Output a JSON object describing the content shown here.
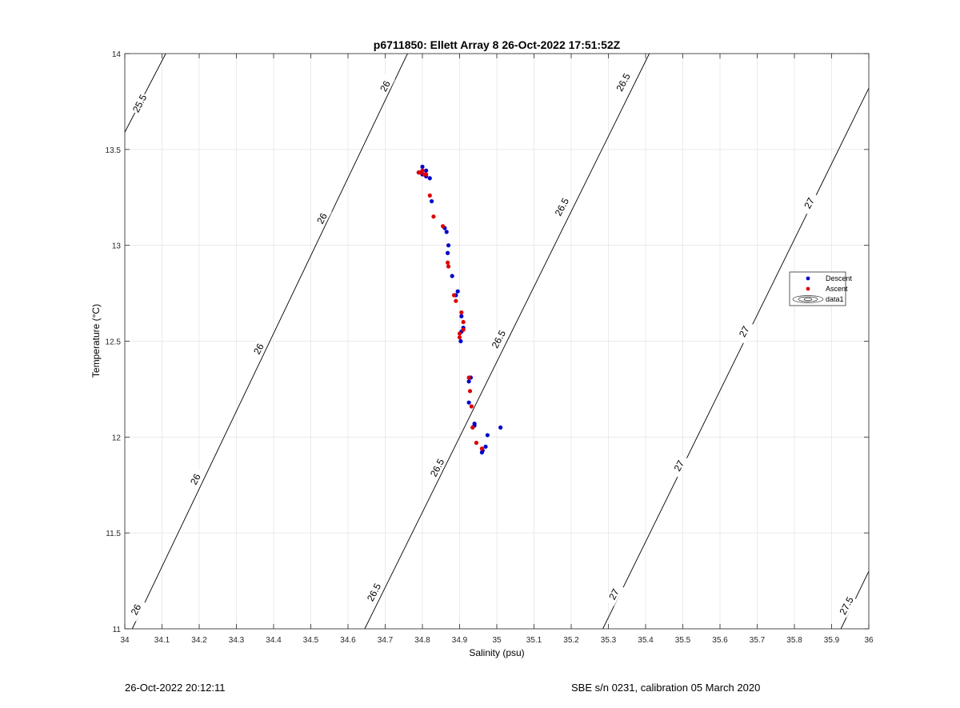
{
  "chart_data": {
    "type": "scatter",
    "title": "p6711850: Ellett Array 8 26-Oct-2022 17:51:52Z",
    "xlabel": "Salinity (psu)",
    "ylabel": "Temperature (°C)",
    "xlim": [
      34,
      36
    ],
    "ylim": [
      11,
      14
    ],
    "xticks": [
      34,
      34.1,
      34.2,
      34.3,
      34.4,
      34.5,
      34.6,
      34.7,
      34.8,
      34.9,
      35,
      35.1,
      35.2,
      35.3,
      35.4,
      35.5,
      35.6,
      35.7,
      35.8,
      35.9,
      36
    ],
    "xtick_labels": [
      "34",
      "34.1",
      "34.2",
      "34.3",
      "34.4",
      "34.5",
      "34.6",
      "34.7",
      "34.8",
      "34.9",
      "35",
      "35.1",
      "35.2",
      "35.3",
      "35.4",
      "35.5",
      "35.6",
      "35.7",
      "35.8",
      "35.9",
      "36"
    ],
    "yticks": [
      11,
      11.5,
      12,
      12.5,
      13,
      13.5,
      14
    ],
    "ytick_labels": [
      "11",
      "11.5",
      "12",
      "12.5",
      "13",
      "13.5",
      "14"
    ],
    "grid": true,
    "legend_position": "right",
    "series": [
      {
        "name": "Descent",
        "color": "#0000cc",
        "marker": "dot",
        "points": [
          [
            34.8,
            13.41
          ],
          [
            34.81,
            13.39
          ],
          [
            34.79,
            13.38
          ],
          [
            34.8,
            13.37
          ],
          [
            34.81,
            13.36
          ],
          [
            34.82,
            13.35
          ],
          [
            34.825,
            13.23
          ],
          [
            34.86,
            13.09
          ],
          [
            34.865,
            13.07
          ],
          [
            34.87,
            13.0
          ],
          [
            34.868,
            12.96
          ],
          [
            34.88,
            12.84
          ],
          [
            34.895,
            12.76
          ],
          [
            34.89,
            12.74
          ],
          [
            34.905,
            12.63
          ],
          [
            34.91,
            12.57
          ],
          [
            34.905,
            12.55
          ],
          [
            34.903,
            12.5
          ],
          [
            34.93,
            12.31
          ],
          [
            34.925,
            12.29
          ],
          [
            34.925,
            12.18
          ],
          [
            34.94,
            12.07
          ],
          [
            34.94,
            12.06
          ],
          [
            35.01,
            12.05
          ],
          [
            34.975,
            12.01
          ],
          [
            34.97,
            11.95
          ],
          [
            34.962,
            11.93
          ],
          [
            34.96,
            11.92
          ]
        ]
      },
      {
        "name": "Ascent",
        "color": "#dd0000",
        "marker": "dot",
        "points": [
          [
            34.79,
            13.38
          ],
          [
            34.8,
            13.39
          ],
          [
            34.81,
            13.37
          ],
          [
            34.795,
            13.38
          ],
          [
            34.805,
            13.37
          ],
          [
            34.82,
            13.26
          ],
          [
            34.83,
            13.15
          ],
          [
            34.855,
            13.1
          ],
          [
            34.868,
            12.91
          ],
          [
            34.87,
            12.89
          ],
          [
            34.885,
            12.74
          ],
          [
            34.89,
            12.71
          ],
          [
            34.905,
            12.65
          ],
          [
            34.91,
            12.6
          ],
          [
            34.91,
            12.56
          ],
          [
            34.9,
            12.54
          ],
          [
            34.9,
            12.52
          ],
          [
            34.925,
            12.31
          ],
          [
            34.928,
            12.24
          ],
          [
            34.932,
            12.16
          ],
          [
            34.935,
            12.05
          ],
          [
            34.945,
            11.97
          ],
          [
            34.96,
            11.94
          ]
        ]
      }
    ],
    "legend": [
      "Descent",
      "Ascent",
      "data1"
    ],
    "contours": {
      "name": "data1",
      "lines": [
        {
          "level": "25.5",
          "p1": [
            34.0,
            13.59
          ],
          "p2": [
            34.11,
            14.0
          ]
        },
        {
          "level": "26",
          "p1": [
            34.02,
            11.0
          ],
          "p2": [
            34.76,
            14.0
          ]
        },
        {
          "level": "26.5",
          "p1": [
            34.645,
            11.0
          ],
          "p2": [
            35.41,
            14.0
          ]
        },
        {
          "level": "27",
          "p1": [
            35.285,
            11.0
          ],
          "p2": [
            36.0,
            13.82
          ]
        },
        {
          "level": "27.5",
          "p1": [
            35.925,
            11.0
          ],
          "p2": [
            36.0,
            11.3
          ]
        }
      ],
      "labels": [
        {
          "text": "25.5",
          "at": [
            34.04,
            13.74
          ]
        },
        {
          "text": "26",
          "at": [
            34.03,
            11.1
          ]
        },
        {
          "text": "26",
          "at": [
            34.19,
            11.78
          ]
        },
        {
          "text": "26",
          "at": [
            34.36,
            12.46
          ]
        },
        {
          "text": "26",
          "at": [
            34.53,
            13.14
          ]
        },
        {
          "text": "26",
          "at": [
            34.7,
            13.83
          ]
        },
        {
          "text": "26.5",
          "at": [
            34.67,
            11.19
          ]
        },
        {
          "text": "26.5",
          "at": [
            34.84,
            11.84
          ]
        },
        {
          "text": "26.5",
          "at": [
            35.005,
            12.51
          ]
        },
        {
          "text": "26.5",
          "at": [
            35.175,
            13.2
          ]
        },
        {
          "text": "26.5",
          "at": [
            35.34,
            13.85
          ]
        },
        {
          "text": "27",
          "at": [
            35.315,
            11.18
          ]
        },
        {
          "text": "27",
          "at": [
            35.49,
            11.85
          ]
        },
        {
          "text": "27",
          "at": [
            35.665,
            12.55
          ]
        },
        {
          "text": "27",
          "at": [
            35.84,
            13.22
          ]
        },
        {
          "text": "27.5",
          "at": [
            35.94,
            11.12
          ]
        }
      ]
    }
  },
  "footer": {
    "timestamp": "26-Oct-2022 20:12:11",
    "sensor_info": "SBE s/n 0231, calibration 05 March 2020"
  }
}
